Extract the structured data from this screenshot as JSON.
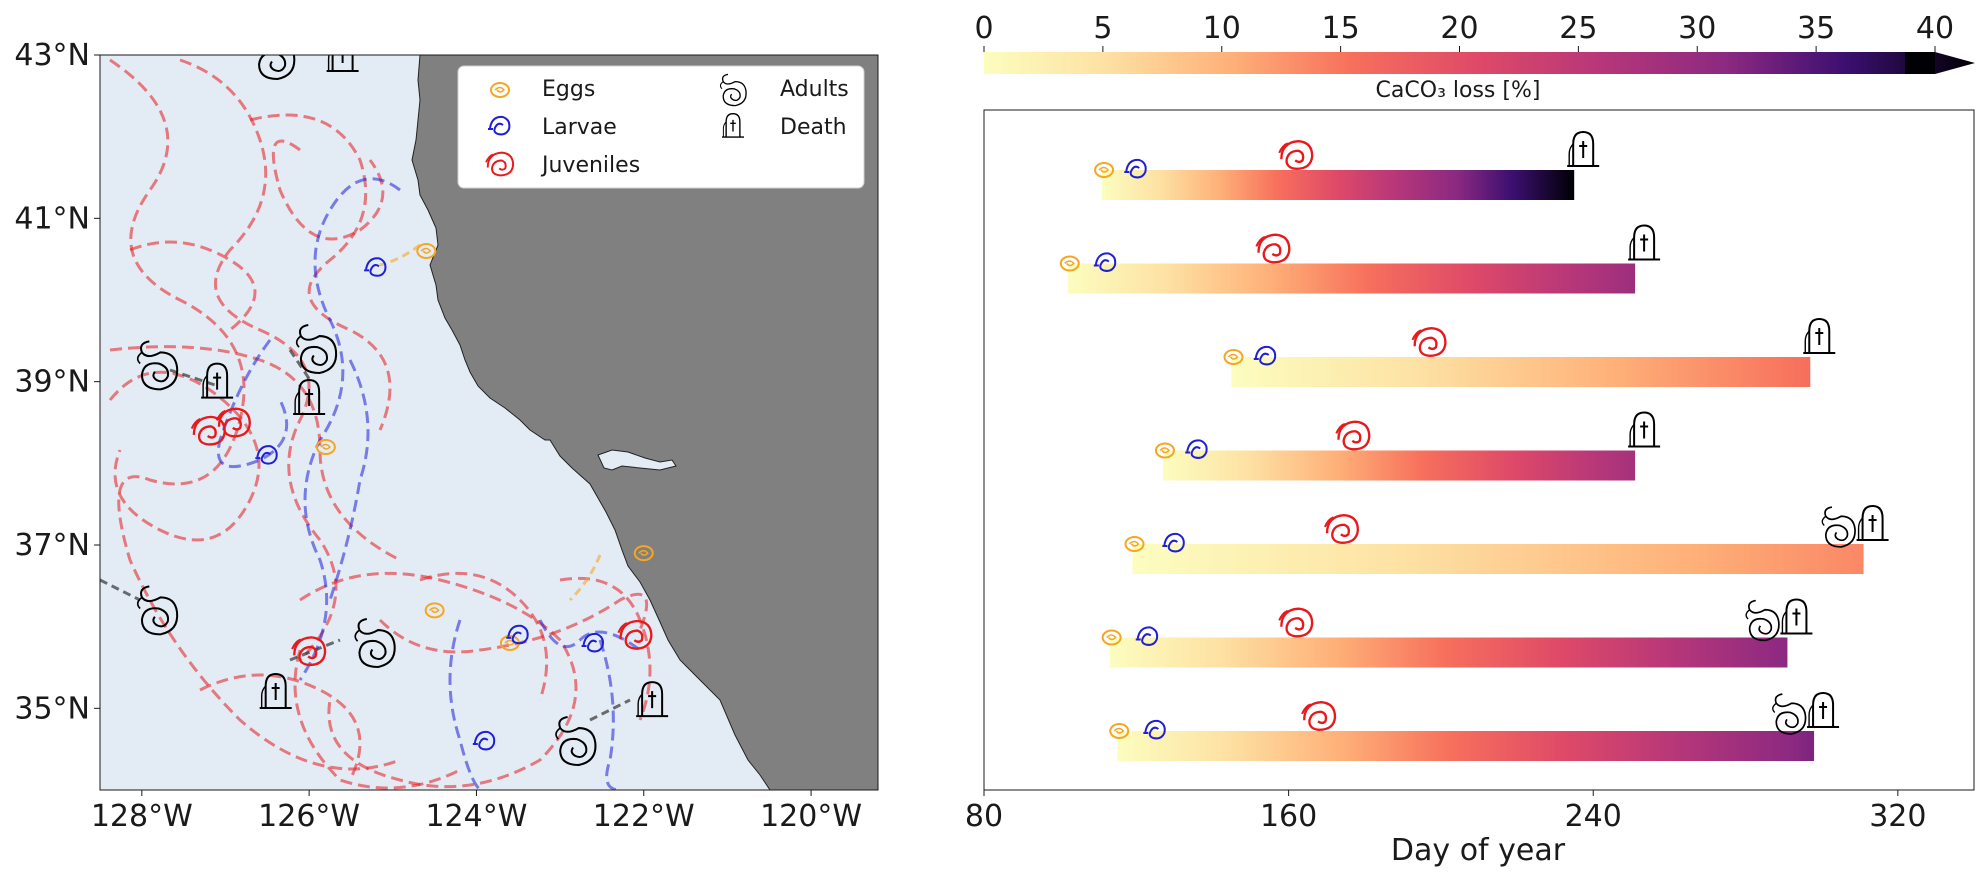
{
  "chart_data": [
    {
      "type": "map",
      "lat_ticks": [
        "43°N",
        "41°N",
        "39°N",
        "37°N",
        "35°N"
      ],
      "lon_ticks": [
        "128°W",
        "126°W",
        "124°W",
        "122°W",
        "120°W"
      ],
      "lat_range": [
        34,
        43
      ],
      "lon_range": [
        -128.5,
        -119.2
      ],
      "colors": {
        "ocean": "#e3ecf5",
        "land": "#808080",
        "eggs": "#f5a623",
        "larvae": "#1f1fd6",
        "juveniles": "#e8191c",
        "adults": "#000000"
      },
      "legend": {
        "location": "top-right",
        "items": [
          {
            "key": "eggs",
            "label": "Eggs",
            "icon": "egg-icon"
          },
          {
            "key": "larvae",
            "label": "Larvae",
            "icon": "larva-icon"
          },
          {
            "key": "juveniles",
            "label": "Juveniles",
            "icon": "juvenile-icon"
          },
          {
            "key": "adults",
            "label": "Adults",
            "icon": "adult-shell-icon"
          },
          {
            "key": "death",
            "label": "Death",
            "icon": "tombstone-icon"
          }
        ]
      },
      "markers": [
        {
          "stage": "eggs",
          "lon": -124.6,
          "lat": 40.6
        },
        {
          "stage": "larvae",
          "lon": -125.2,
          "lat": 40.4
        },
        {
          "stage": "eggs",
          "lon": -125.8,
          "lat": 38.2
        },
        {
          "stage": "larvae",
          "lon": -126.5,
          "lat": 38.1
        },
        {
          "stage": "juveniles",
          "lon": -126.9,
          "lat": 38.5
        },
        {
          "stage": "juveniles",
          "lon": -127.2,
          "lat": 38.4
        },
        {
          "stage": "adults",
          "lon": -127.8,
          "lat": 39.2
        },
        {
          "stage": "death",
          "lon": -127.1,
          "lat": 39.0
        },
        {
          "stage": "adults",
          "lon": -125.9,
          "lat": 39.4
        },
        {
          "stage": "death",
          "lon": -126.0,
          "lat": 38.8
        },
        {
          "stage": "eggs",
          "lon": -122.0,
          "lat": 36.9
        },
        {
          "stage": "eggs",
          "lon": -124.5,
          "lat": 36.2
        },
        {
          "stage": "eggs",
          "lon": -123.6,
          "lat": 35.8
        },
        {
          "stage": "larvae",
          "lon": -123.5,
          "lat": 35.9
        },
        {
          "stage": "larvae",
          "lon": -122.6,
          "lat": 35.8
        },
        {
          "stage": "juveniles",
          "lon": -122.1,
          "lat": 35.9
        },
        {
          "stage": "juveniles",
          "lon": -126.0,
          "lat": 35.7
        },
        {
          "stage": "adults",
          "lon": -125.2,
          "lat": 35.8
        },
        {
          "stage": "death",
          "lon": -126.4,
          "lat": 35.2
        },
        {
          "stage": "adults",
          "lon": -127.8,
          "lat": 36.2
        },
        {
          "stage": "larvae",
          "lon": -123.9,
          "lat": 34.6
        },
        {
          "stage": "adults",
          "lon": -122.8,
          "lat": 34.6
        },
        {
          "stage": "death",
          "lon": -121.9,
          "lat": 35.1
        },
        {
          "stage": "adults",
          "lon": -126.4,
          "lat": 43.0
        },
        {
          "stage": "death",
          "lon": -125.6,
          "lat": 43.0
        }
      ]
    },
    {
      "type": "gantt",
      "xlabel": "Day of year",
      "xlim": [
        80,
        340
      ],
      "xticks": [
        80,
        160,
        240,
        320
      ],
      "colorbar": {
        "label": "CaCO₃ loss [%]",
        "range": [
          0,
          40
        ],
        "ticks": [
          0,
          5,
          10,
          15,
          20,
          25,
          30,
          35,
          40
        ],
        "colormap": "magma_r",
        "extend": "max"
      },
      "rows": [
        {
          "egg": 111,
          "larva": 120,
          "juvenile": 162,
          "end": 235,
          "final": "death",
          "max_loss": 40
        },
        {
          "egg": 102,
          "larva": 112,
          "juvenile": 156,
          "end": 251,
          "final": "death",
          "max_loss": 28
        },
        {
          "egg": 145,
          "larva": 154,
          "juvenile": 197,
          "end": 297,
          "final": "death",
          "max_loss": 15
        },
        {
          "egg": 127,
          "larva": 136,
          "juvenile": 177,
          "end": 251,
          "final": "death",
          "max_loss": 27
        },
        {
          "egg": 119,
          "larva": 130,
          "juvenile": 174,
          "end": 311,
          "final": "adult+death",
          "max_loss": 13
        },
        {
          "egg": 113,
          "larva": 123,
          "juvenile": 162,
          "end": 291,
          "final": "adult+death",
          "max_loss": 30
        },
        {
          "egg": 115,
          "larva": 125,
          "juvenile": 168,
          "end": 298,
          "final": "adult+death",
          "max_loss": 31
        }
      ]
    }
  ]
}
